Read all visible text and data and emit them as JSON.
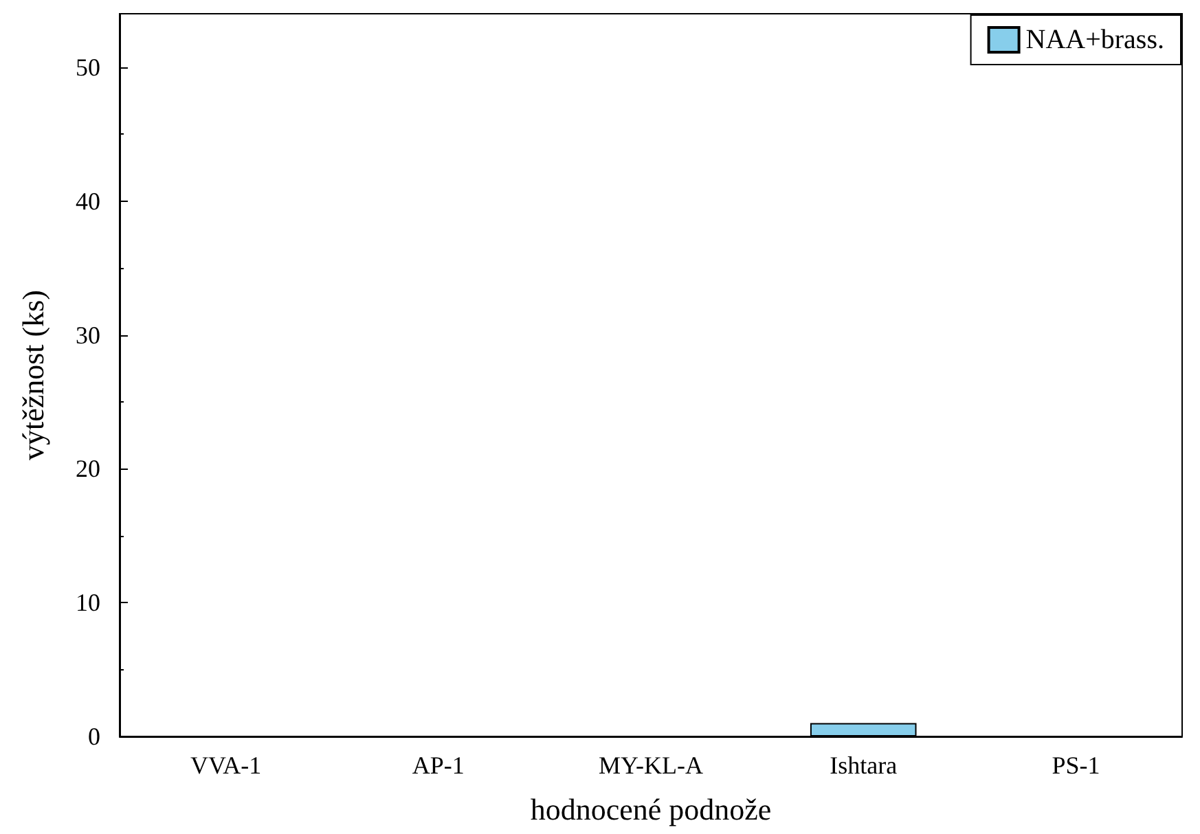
{
  "chart_data": {
    "type": "bar",
    "xlabel": "hodnocené podnože",
    "ylabel": "výtěžnost (ks)",
    "categories": [
      "VVA-1",
      "AP-1",
      "MY-KL-A",
      "Ishtara",
      "PS-1"
    ],
    "series": [
      {
        "name": "NAA+brass.",
        "color": "#87ceeb",
        "values": [
          0,
          0,
          0,
          1,
          0
        ]
      }
    ],
    "ylim": [
      0,
      54
    ],
    "yticks": [
      0,
      10,
      20,
      30,
      40,
      50
    ],
    "grid": false,
    "legend": "top right"
  }
}
